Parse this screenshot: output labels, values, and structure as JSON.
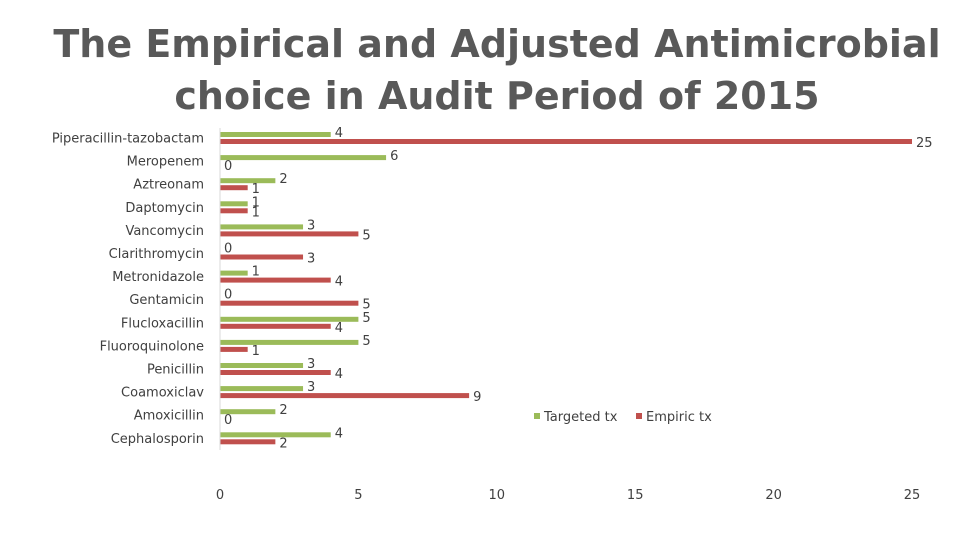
{
  "chart_data": {
    "type": "bar",
    "orientation": "horizontal",
    "title": "The Empirical and Adjusted Antimicrobial choice in Audit Period of 2015",
    "title_lines": [
      "The Empirical and Adjusted Antimicrobial",
      "choice in Audit Period of 2015"
    ],
    "categories": [
      "Piperacillin-tazobactam",
      "Meropenem",
      "Aztreonam",
      "Daptomycin",
      "Vancomycin",
      "Clarithromycin",
      "Metronidazole",
      "Gentamicin",
      "Flucloxacillin",
      "Fluoroquinolone",
      "Penicillin",
      "Coamoxiclav",
      "Amoxicillin",
      "Cephalosporin"
    ],
    "series": [
      {
        "name": "Targeted tx",
        "color": "#9bbb59",
        "values": [
          4,
          6,
          2,
          1,
          3,
          0,
          1,
          0,
          5,
          5,
          3,
          3,
          2,
          4
        ]
      },
      {
        "name": "Empiric tx",
        "color": "#c0504d",
        "values": [
          25,
          0,
          1,
          1,
          5,
          3,
          4,
          5,
          4,
          1,
          4,
          9,
          0,
          2
        ]
      }
    ],
    "xlim": [
      0,
      25
    ],
    "xticks": [
      0,
      5,
      10,
      15,
      20,
      25
    ],
    "grid": false,
    "legend": "right"
  }
}
